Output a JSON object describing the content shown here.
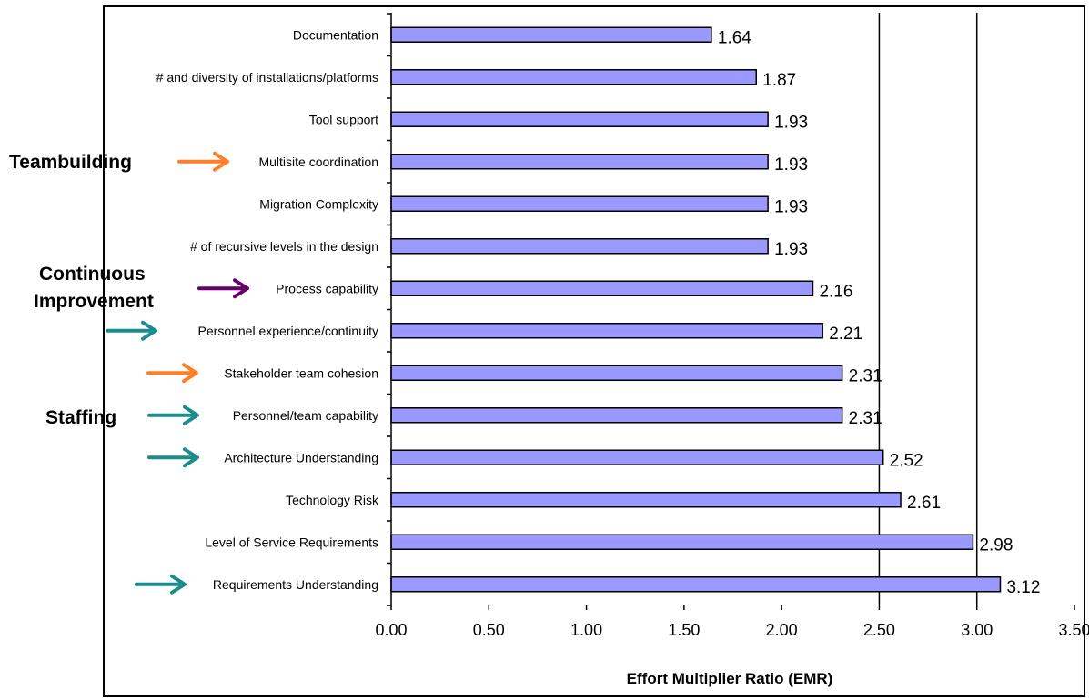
{
  "chart_data": {
    "type": "bar",
    "orientation": "horizontal",
    "title": "",
    "xlabel": "Effort Multiplier Ratio (EMR)",
    "ylabel": "",
    "xlim": [
      0,
      3.5
    ],
    "xticks": [
      0,
      0.5,
      1.0,
      1.5,
      2.0,
      2.5,
      3.0,
      3.5
    ],
    "xtick_labels": [
      "0.00",
      "0.50",
      "1.00",
      "1.50",
      "2.00",
      "2.50",
      "3.00",
      "3.50"
    ],
    "grid": "vertical gridlines at 2.50 and 3.00",
    "bar_color": "#9999ff",
    "categories": [
      "Documentation",
      "# and diversity of installations/platforms",
      "Tool support",
      "Multisite coordination",
      "Migration Complexity",
      "# of recursive levels in the design",
      "Process capability",
      "Personnel experience/continuity",
      "Stakeholder team cohesion",
      "Personnel/team capability",
      "Architecture Understanding",
      "Technology Risk",
      "Level of Service Requirements",
      "Requirements Understanding"
    ],
    "values": [
      1.64,
      1.87,
      1.93,
      1.93,
      1.93,
      1.93,
      2.16,
      2.21,
      2.31,
      2.31,
      2.52,
      2.61,
      2.98,
      3.12
    ],
    "value_labels": [
      "1.64",
      "1.87",
      "1.93",
      "1.93",
      "1.93",
      "1.93",
      "2.16",
      "2.21",
      "2.31",
      "2.31",
      "2.52",
      "2.61",
      "2.98",
      "3.12"
    ]
  },
  "annotations": [
    {
      "text_lines": [
        "Teambuilding"
      ],
      "arrow_color": "#ff7f27",
      "points_to": "Multisite coordination"
    },
    {
      "text_lines": [
        "Continuous",
        "Improvement"
      ],
      "arrow_color": "#660066",
      "points_to": "Process capability"
    },
    {
      "text_lines": [],
      "arrow_color": "#1a8c8c",
      "points_to": "Personnel experience/continuity"
    },
    {
      "text_lines": [],
      "arrow_color": "#ff7f27",
      "points_to": "Stakeholder team cohesion"
    },
    {
      "text_lines": [
        "Staffing"
      ],
      "arrow_color": "#1a8c8c",
      "points_to": "Personnel/team capability"
    },
    {
      "text_lines": [],
      "arrow_color": "#1a8c8c",
      "points_to": "Architecture Understanding"
    },
    {
      "text_lines": [],
      "arrow_color": "#1a8c8c",
      "points_to": "Requirements Understanding"
    }
  ]
}
